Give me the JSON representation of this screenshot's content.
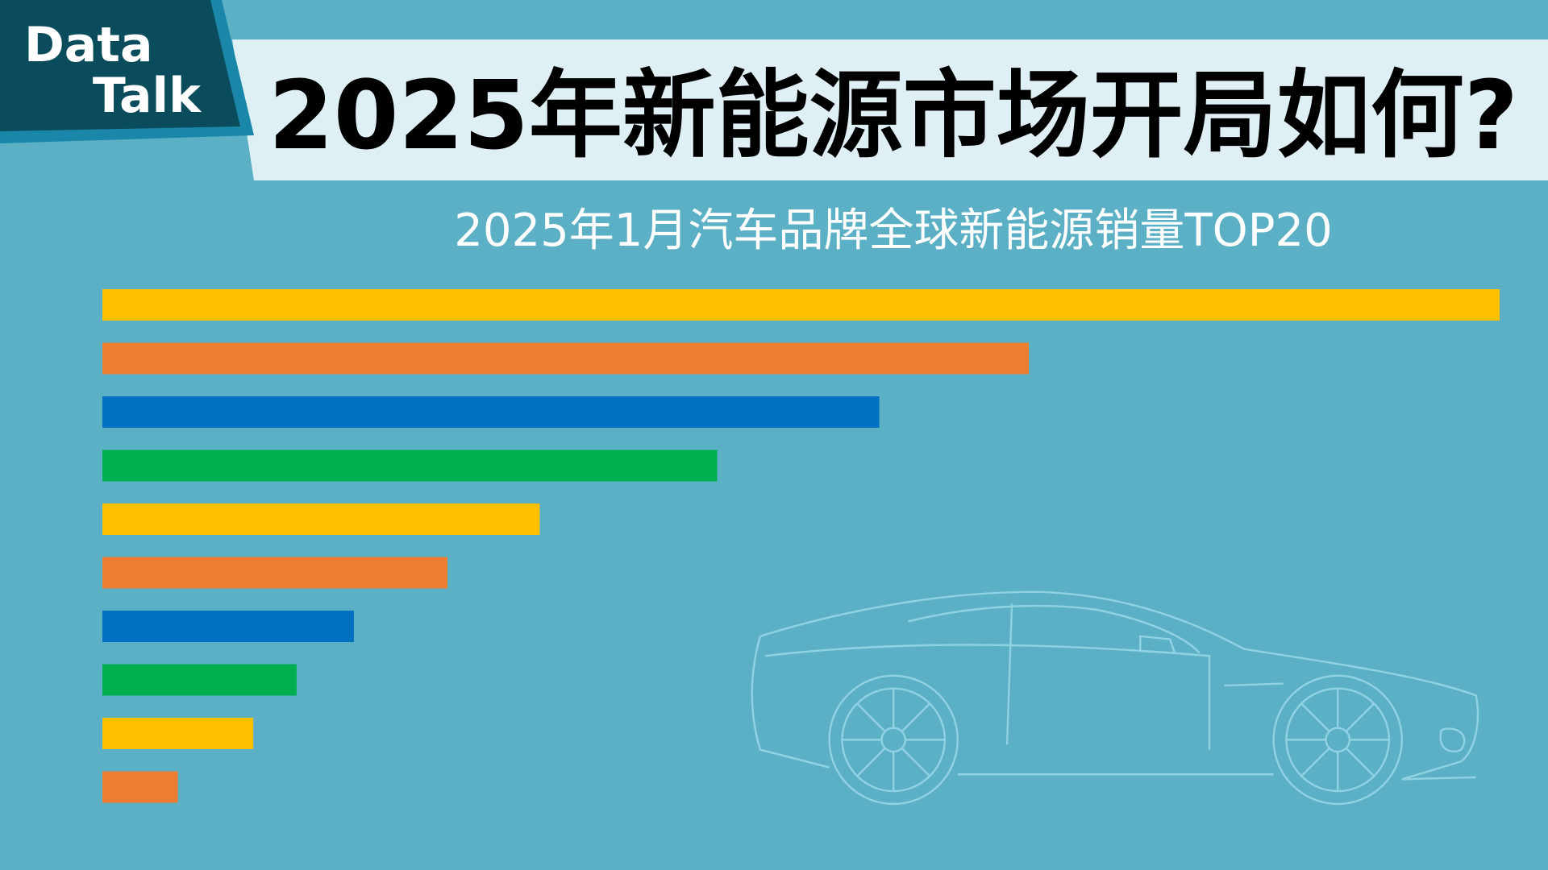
{
  "badge": {
    "line1": "Data",
    "line2": "Talk"
  },
  "chart_data": {
    "type": "bar",
    "orientation": "horizontal",
    "title": "2025年新能源市场开局如何?",
    "subtitle": "2025年1月汽车品牌全球新能源销量TOP20",
    "values": [
      100,
      66.3,
      55.6,
      44.0,
      31.3,
      24.7,
      18.0,
      13.9,
      10.8,
      5.4
    ],
    "colors": [
      "#ffc000",
      "#ed7d31",
      "#0070c0",
      "#00b050",
      "#ffc000",
      "#ed7d31",
      "#0070c0",
      "#00b050",
      "#ffc000",
      "#ed7d31"
    ],
    "xlim": [
      0,
      100
    ]
  }
}
